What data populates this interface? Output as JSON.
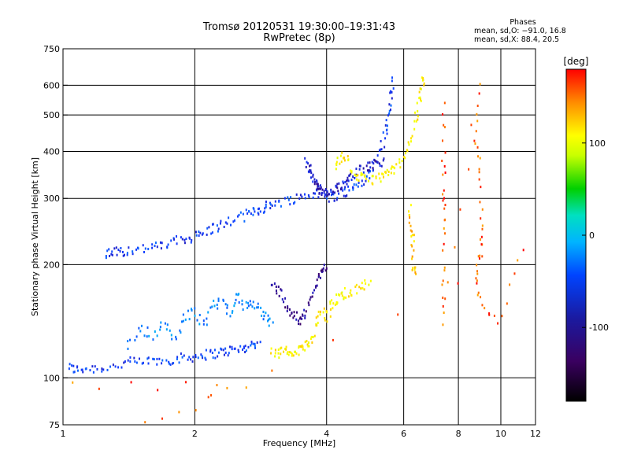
{
  "title": {
    "line1": "Tromsø 20120531 19:30:00–19:31:43",
    "line2": "RwPretec (8p)"
  },
  "phases": {
    "header": "Phases",
    "line1": "mean, sd,O: −91.0, 16.8",
    "line2": "mean, sd,X:  88.4, 20.5"
  },
  "colorbar": {
    "unit": "[deg]",
    "ticks": [
      100,
      0,
      -100
    ],
    "range": [
      -180,
      180
    ]
  },
  "chart_data": {
    "type": "scatter",
    "title": "Tromsø 20120531 19:30:00–19:31:43",
    "subtitle": "RwPretec (8p)",
    "xlabel": "Frequency [MHz]",
    "ylabel": "Stationary phase Virtual Height [km]",
    "xscale": "log",
    "yscale": "log",
    "xlim": [
      1,
      12
    ],
    "ylim": [
      75,
      750
    ],
    "xticks": [
      1,
      2,
      4,
      6,
      8,
      10,
      12
    ],
    "yticks": [
      75,
      100,
      200,
      300,
      400,
      500,
      600,
      750
    ],
    "grid": true,
    "color_scale": "phase [deg], -180 to 180 (black-purple-blue-cyan-green-yellow-orange-red)",
    "series": [
      {
        "trace": [
          [
            1.03,
            107
          ],
          [
            1.07,
            105
          ],
          [
            1.12,
            106
          ],
          [
            1.2,
            106
          ],
          [
            1.3,
            107
          ],
          [
            1.4,
            110
          ],
          [
            1.5,
            110
          ],
          [
            1.6,
            111
          ],
          [
            1.7,
            111
          ],
          [
            1.8,
            112
          ],
          [
            1.9,
            113
          ],
          [
            2.0,
            114
          ],
          [
            2.1,
            115
          ],
          [
            2.2,
            116
          ],
          [
            2.3,
            117
          ],
          [
            2.4,
            118
          ],
          [
            2.5,
            119
          ],
          [
            2.6,
            120
          ],
          [
            2.7,
            122
          ],
          [
            2.8,
            125
          ]
        ],
        "phase": -100
      },
      {
        "trace": [
          [
            1.25,
            214
          ],
          [
            1.3,
            216
          ],
          [
            1.35,
            217
          ],
          [
            1.4,
            218
          ],
          [
            1.5,
            220
          ],
          [
            1.6,
            222
          ],
          [
            1.7,
            225
          ],
          [
            1.8,
            230
          ],
          [
            1.9,
            234
          ],
          [
            2.0,
            238
          ],
          [
            2.1,
            243
          ],
          [
            2.2,
            250
          ],
          [
            2.3,
            255
          ],
          [
            2.45,
            262
          ],
          [
            2.6,
            270
          ],
          [
            2.7,
            276
          ],
          [
            2.8,
            280
          ],
          [
            2.9,
            285
          ],
          [
            3.0,
            290
          ],
          [
            3.2,
            295
          ],
          [
            3.4,
            300
          ],
          [
            3.6,
            305
          ],
          [
            3.8,
            310
          ],
          [
            4.0,
            300
          ],
          [
            4.2,
            305
          ],
          [
            4.4,
            310
          ],
          [
            4.6,
            320
          ],
          [
            4.8,
            330
          ],
          [
            5.0,
            345
          ],
          [
            5.2,
            370
          ],
          [
            5.35,
            410
          ],
          [
            5.45,
            450
          ],
          [
            5.55,
            500
          ],
          [
            5.6,
            560
          ],
          [
            5.65,
            620
          ]
        ],
        "phase": -100
      },
      {
        "trace": [
          [
            3.6,
            380
          ],
          [
            3.65,
            360
          ],
          [
            3.7,
            345
          ],
          [
            3.75,
            335
          ],
          [
            3.8,
            325
          ],
          [
            3.85,
            318
          ],
          [
            3.9,
            312
          ],
          [
            4.0,
            308
          ],
          [
            4.1,
            310
          ],
          [
            4.2,
            315
          ],
          [
            4.3,
            322
          ],
          [
            4.4,
            330
          ],
          [
            4.5,
            340
          ],
          [
            4.6,
            350
          ],
          [
            4.8,
            360
          ],
          [
            5.0,
            365
          ],
          [
            5.2,
            372
          ],
          [
            5.4,
            380
          ]
        ],
        "phase": -120
      },
      {
        "trace": [
          [
            4.2,
            370
          ],
          [
            4.3,
            380
          ],
          [
            4.4,
            390
          ],
          [
            4.6,
            350
          ],
          [
            4.8,
            340
          ],
          [
            5.0,
            335
          ],
          [
            5.2,
            340
          ],
          [
            5.4,
            345
          ],
          [
            5.6,
            350
          ],
          [
            5.8,
            365
          ],
          [
            6.0,
            380
          ],
          [
            6.2,
            420
          ],
          [
            6.4,
            480
          ],
          [
            6.5,
            540
          ],
          [
            6.6,
            600
          ],
          [
            6.7,
            640
          ]
        ],
        "phase": 110
      },
      {
        "trace": [
          [
            1.4,
            120
          ],
          [
            1.5,
            135
          ],
          [
            1.6,
            130
          ],
          [
            1.7,
            140
          ],
          [
            1.8,
            125
          ],
          [
            1.9,
            145
          ],
          [
            2.0,
            150
          ],
          [
            2.1,
            140
          ],
          [
            2.2,
            155
          ],
          [
            2.3,
            160
          ],
          [
            2.4,
            150
          ],
          [
            2.5,
            165
          ],
          [
            2.6,
            155
          ],
          [
            2.7,
            160
          ],
          [
            2.8,
            150
          ],
          [
            2.9,
            145
          ],
          [
            3.0,
            140
          ]
        ],
        "phase": -70
      },
      {
        "trace": [
          [
            3.0,
            180
          ],
          [
            3.1,
            170
          ],
          [
            3.2,
            160
          ],
          [
            3.3,
            150
          ],
          [
            3.4,
            145
          ],
          [
            3.5,
            140
          ],
          [
            3.6,
            150
          ],
          [
            3.7,
            165
          ],
          [
            3.8,
            180
          ],
          [
            3.9,
            195
          ],
          [
            4.0,
            200
          ]
        ],
        "phase": -140
      },
      {
        "trace": [
          [
            3.0,
            118
          ],
          [
            3.1,
            116
          ],
          [
            3.2,
            117
          ],
          [
            3.3,
            118
          ],
          [
            3.4,
            116
          ],
          [
            3.5,
            120
          ],
          [
            3.6,
            122
          ],
          [
            3.7,
            125
          ],
          [
            3.8,
            140
          ],
          [
            3.9,
            150
          ],
          [
            4.0,
            145
          ],
          [
            4.1,
            155
          ],
          [
            4.2,
            160
          ],
          [
            4.3,
            165
          ],
          [
            4.4,
            168
          ],
          [
            4.6,
            170
          ],
          [
            4.8,
            175
          ],
          [
            5.0,
            180
          ]
        ],
        "phase": 110
      },
      {
        "trace": [
          [
            6.2,
            280
          ],
          [
            6.25,
            250
          ],
          [
            6.3,
            230
          ],
          [
            6.3,
            200
          ],
          [
            6.35,
            190
          ]
        ],
        "phase": 130
      },
      {
        "trace": [
          [
            7.4,
            540
          ],
          [
            7.4,
            380
          ],
          [
            7.4,
            300
          ],
          [
            7.4,
            250
          ],
          [
            7.4,
            180
          ],
          [
            7.4,
            140
          ],
          [
            8.9,
            590
          ],
          [
            8.7,
            430
          ],
          [
            9.0,
            350
          ],
          [
            9.0,
            250
          ],
          [
            9.0,
            215
          ],
          [
            8.8,
            190
          ],
          [
            8.9,
            160
          ],
          [
            9.8,
            140
          ],
          [
            11.2,
            215
          ],
          [
            1.55,
            75
          ],
          [
            2.6,
            95
          ],
          [
            1.05,
            95
          ]
        ],
        "phase": 160
      }
    ]
  }
}
